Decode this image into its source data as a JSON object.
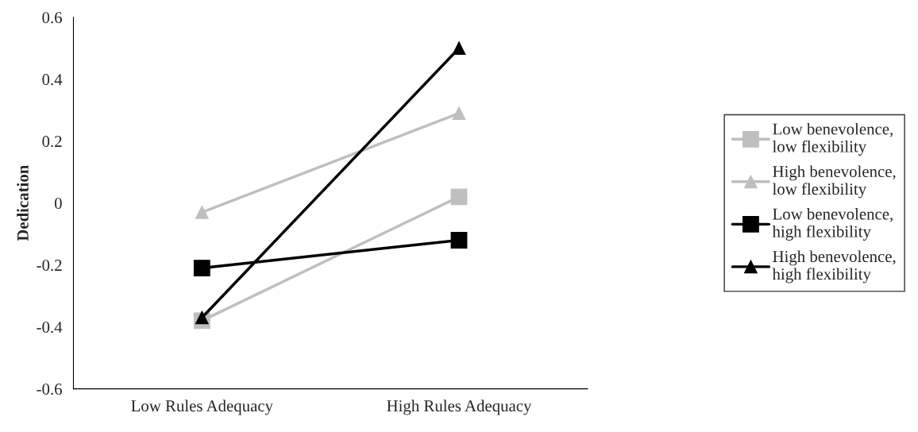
{
  "chart_data": {
    "type": "line",
    "categories": [
      "Low Rules Adequacy",
      "High Rules Adequacy"
    ],
    "ylabel": "Dedication",
    "ylim": [
      -0.6,
      0.6
    ],
    "yticks": [
      {
        "value": -0.6,
        "label": "-0.6"
      },
      {
        "value": -0.4,
        "label": "-0.4"
      },
      {
        "value": -0.2,
        "label": "-0.2"
      },
      0,
      0.2,
      0.4,
      0.6
    ],
    "grid": false,
    "legend": "right",
    "line_style": "solid",
    "series": [
      {
        "name": "Low benevolence,\nlow flexibility",
        "color": "#bfbfbf",
        "marker": "square",
        "values": [
          -0.38,
          0.02
        ]
      },
      {
        "name": "High benevolence,\nlow flexibility",
        "color": "#bfbfbf",
        "marker": "triangle",
        "values": [
          -0.03,
          0.29
        ]
      },
      {
        "name": "Low benevolence,\nhigh flexibility",
        "color": "#000000",
        "marker": "square",
        "values": [
          -0.21,
          -0.12
        ]
      },
      {
        "name": "High benevolence,\nhigh flexibility",
        "color": "#000000",
        "marker": "triangle",
        "values": [
          -0.37,
          0.5
        ]
      }
    ]
  }
}
